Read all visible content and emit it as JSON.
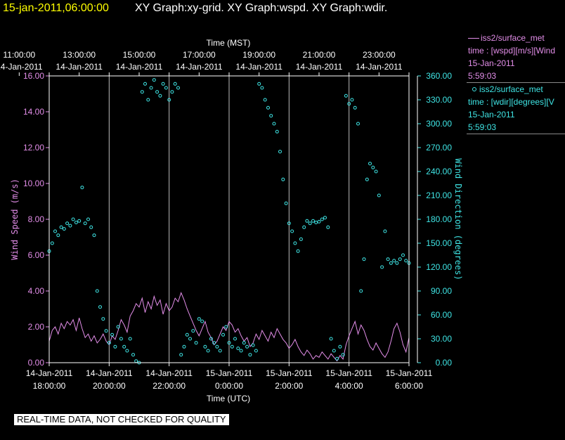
{
  "header": {
    "timestamp": "15-jan-2011,06:00:00",
    "graphs": "XY Graph:xy-grid.  XY Graph:wspd.  XY Graph:wdir."
  },
  "banner": "REAL-TIME DATA, NOT CHECKED FOR QUALITY",
  "legend": [
    {
      "name": "iss2/surface_met",
      "desc": "time : [wspd][m/s][Wind",
      "date": "15-Jan-2011",
      "time": "5:59:03",
      "color": "#e28de8",
      "marker": "line"
    },
    {
      "name": "iss2/surface_met",
      "desc": "time : [wdir][degrees][V",
      "date": "15-Jan-2011",
      "time": "5:59:03",
      "color": "#3fe6e6",
      "marker": "circle"
    }
  ],
  "chart_data": {
    "type": "line",
    "xlabel_top": "Time (MST)",
    "xlabel_bottom": "Time (UTC)",
    "ylabel_left": "Wind Speed (m/s)",
    "ylabel_right": "Wind Direction (degrees)",
    "x_range_hours_utc": [
      18,
      30
    ],
    "top_ticks": [
      {
        "time": "11:00:00",
        "date": "14-Jan-2011"
      },
      {
        "time": "13:00:00",
        "date": "14-Jan-2011"
      },
      {
        "time": "15:00:00",
        "date": "14-Jan-2011"
      },
      {
        "time": "17:00:00",
        "date": "14-Jan-2011"
      },
      {
        "time": "19:00:00",
        "date": "14-Jan-2011"
      },
      {
        "time": "21:00:00",
        "date": "14-Jan-2011"
      },
      {
        "time": "23:00:00",
        "date": "14-Jan-2011"
      }
    ],
    "bottom_ticks": [
      {
        "date": "14-Jan-2011",
        "time": "18:00:00"
      },
      {
        "date": "14-Jan-2011",
        "time": "20:00:00"
      },
      {
        "date": "14-Jan-2011",
        "time": "22:00:00"
      },
      {
        "date": "15-Jan-2011",
        "time": "0:00:00"
      },
      {
        "date": "15-Jan-2011",
        "time": "2:00:00"
      },
      {
        "date": "15-Jan-2011",
        "time": "4:00:00"
      },
      {
        "date": "15-Jan-2011",
        "time": "6:00:00"
      }
    ],
    "y_left_range": [
      0,
      16
    ],
    "y_left_ticks": [
      "0.00",
      "2.00",
      "4.00",
      "6.00",
      "8.00",
      "10.00",
      "12.00",
      "14.00",
      "16.00"
    ],
    "y_right_range": [
      0,
      360
    ],
    "y_right_ticks": [
      "0.00",
      "30.00",
      "60.00",
      "90.00",
      "120.00",
      "150.00",
      "180.00",
      "210.00",
      "240.00",
      "270.00",
      "300.00",
      "330.00",
      "360.00"
    ],
    "grid": "vertical",
    "series": [
      {
        "name": "iss2/surface_met wspd",
        "axis": "left",
        "color": "#e28de8",
        "style": "line",
        "x": [
          18.0,
          18.1,
          18.2,
          18.3,
          18.4,
          18.5,
          18.6,
          18.7,
          18.8,
          18.9,
          19.0,
          19.1,
          19.2,
          19.3,
          19.4,
          19.5,
          19.6,
          19.7,
          19.8,
          19.9,
          20.0,
          20.1,
          20.2,
          20.3,
          20.4,
          20.5,
          20.6,
          20.7,
          20.8,
          20.9,
          21.0,
          21.1,
          21.2,
          21.3,
          21.4,
          21.5,
          21.6,
          21.7,
          21.8,
          21.9,
          22.0,
          22.1,
          22.2,
          22.3,
          22.4,
          22.5,
          22.6,
          22.7,
          22.8,
          22.9,
          23.0,
          23.1,
          23.2,
          23.3,
          23.4,
          23.5,
          23.6,
          23.7,
          23.8,
          23.9,
          24.0,
          24.1,
          24.2,
          24.3,
          24.4,
          24.5,
          24.6,
          24.7,
          24.8,
          24.9,
          25.0,
          25.1,
          25.2,
          25.3,
          25.4,
          25.5,
          25.6,
          25.7,
          25.8,
          25.9,
          26.0,
          26.1,
          26.2,
          26.3,
          26.4,
          26.5,
          26.6,
          26.7,
          26.8,
          26.9,
          27.0,
          27.1,
          27.2,
          27.3,
          27.4,
          27.5,
          27.6,
          27.7,
          27.8,
          27.9,
          28.0,
          28.1,
          28.2,
          28.3,
          28.4,
          28.5,
          28.6,
          28.7,
          28.8,
          28.9,
          29.0,
          29.1,
          29.2,
          29.3,
          29.4,
          29.5,
          29.6,
          29.7,
          29.8,
          29.9,
          30.0
        ],
        "values": [
          1.2,
          1.8,
          2.0,
          1.6,
          2.2,
          1.9,
          2.3,
          2.1,
          2.4,
          1.8,
          2.5,
          1.9,
          1.4,
          1.6,
          1.2,
          1.5,
          1.1,
          1.3,
          1.6,
          1.2,
          1.0,
          1.5,
          1.3,
          1.8,
          2.4,
          2.1,
          1.7,
          2.6,
          2.9,
          3.3,
          3.1,
          3.6,
          2.8,
          3.4,
          3.0,
          3.7,
          3.2,
          3.5,
          2.7,
          3.3,
          2.9,
          3.1,
          3.6,
          3.4,
          3.9,
          3.5,
          3.0,
          2.6,
          2.2,
          1.8,
          1.5,
          1.9,
          2.3,
          1.7,
          1.4,
          1.0,
          1.2,
          1.6,
          2.0,
          1.8,
          2.3,
          2.1,
          1.7,
          1.9,
          1.5,
          1.2,
          1.4,
          0.9,
          1.1,
          1.6,
          1.3,
          1.8,
          1.5,
          1.2,
          1.7,
          1.4,
          1.9,
          1.6,
          1.3,
          1.1,
          0.8,
          1.0,
          1.3,
          0.9,
          0.6,
          0.4,
          0.7,
          0.5,
          0.2,
          0.4,
          0.3,
          0.6,
          0.4,
          0.2,
          0.5,
          0.3,
          0.1,
          0.4,
          0.2,
          1.0,
          1.5,
          1.9,
          2.3,
          1.6,
          2.1,
          1.8,
          1.3,
          0.9,
          0.7,
          1.1,
          0.8,
          0.5,
          0.3,
          0.6,
          1.2,
          1.9,
          2.2,
          1.7,
          1.0,
          0.6,
          1.4
        ]
      },
      {
        "name": "iss2/surface_met wdir",
        "axis": "right",
        "color": "#3fe6e6",
        "style": "scatter-circle",
        "x": [
          18.0,
          18.1,
          18.2,
          18.3,
          18.4,
          18.5,
          18.6,
          18.7,
          18.8,
          18.9,
          19.0,
          19.1,
          19.2,
          19.3,
          19.4,
          19.5,
          19.6,
          19.7,
          19.8,
          19.9,
          20.0,
          20.1,
          20.2,
          20.3,
          20.4,
          20.5,
          20.6,
          20.7,
          20.8,
          20.9,
          21.0,
          21.1,
          21.2,
          21.3,
          21.4,
          21.5,
          21.6,
          21.7,
          21.8,
          21.9,
          22.0,
          22.1,
          22.2,
          22.3,
          22.4,
          22.5,
          22.6,
          22.7,
          22.8,
          22.9,
          23.0,
          23.1,
          23.2,
          23.3,
          23.4,
          23.5,
          23.6,
          23.7,
          23.8,
          23.9,
          24.0,
          24.1,
          24.2,
          24.3,
          24.4,
          24.5,
          24.6,
          24.7,
          24.8,
          24.9,
          25.0,
          25.1,
          25.2,
          25.3,
          25.4,
          25.5,
          25.6,
          25.7,
          25.8,
          25.9,
          26.0,
          26.1,
          26.2,
          26.3,
          26.4,
          26.5,
          26.6,
          26.7,
          26.8,
          26.9,
          27.0,
          27.1,
          27.2,
          27.3,
          27.4,
          27.5,
          27.6,
          27.7,
          27.8,
          27.9,
          28.0,
          28.1,
          28.2,
          28.3,
          28.4,
          28.5,
          28.6,
          28.7,
          28.8,
          28.9,
          29.0,
          29.1,
          29.2,
          29.3,
          29.4,
          29.5,
          29.6,
          29.7,
          29.8,
          29.9,
          30.0
        ],
        "values": [
          140,
          150,
          165,
          160,
          170,
          168,
          175,
          172,
          180,
          176,
          178,
          220,
          175,
          180,
          170,
          160,
          90,
          70,
          55,
          40,
          25,
          35,
          20,
          45,
          30,
          20,
          15,
          30,
          10,
          2,
          0,
          340,
          350,
          330,
          345,
          355,
          340,
          335,
          350,
          345,
          330,
          340,
          350,
          345,
          10,
          20,
          35,
          30,
          40,
          25,
          55,
          52,
          20,
          15,
          30,
          25,
          20,
          15,
          35,
          45,
          25,
          20,
          30,
          18,
          15,
          25,
          20,
          10,
          22,
          15,
          350,
          345,
          330,
          320,
          310,
          300,
          290,
          265,
          230,
          200,
          175,
          165,
          150,
          140,
          155,
          170,
          178,
          175,
          178,
          176,
          177,
          180,
          182,
          170,
          30,
          15,
          5,
          20,
          10,
          335,
          325,
          330,
          320,
          300,
          90,
          130,
          230,
          250,
          245,
          240,
          210,
          120,
          165,
          130,
          125,
          128,
          125,
          130,
          135,
          128,
          125
        ]
      }
    ]
  }
}
